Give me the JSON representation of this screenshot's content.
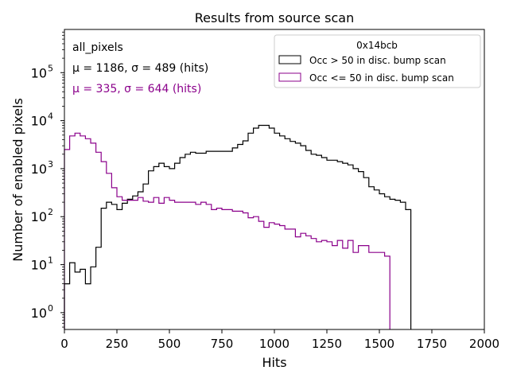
{
  "chart_data": {
    "type": "histogram",
    "title": "Results from source scan",
    "xlabel": "Hits",
    "ylabel": "Number of enabled pixels",
    "xlim": [
      0,
      2000
    ],
    "ylim_log10": [
      -0.35,
      5.9
    ],
    "yscale": "log",
    "bin_width": 25,
    "x_ticks": [
      0,
      250,
      500,
      750,
      1000,
      1250,
      1500,
      1750,
      2000
    ],
    "x_tick_labels": [
      "0",
      "250",
      "500",
      "750",
      "1000",
      "1250",
      "1500",
      "1750",
      "2000"
    ],
    "y_ticks": [
      {
        "exp": 0,
        "label": "10",
        "sup": "0"
      },
      {
        "exp": 1,
        "label": "10",
        "sup": "1"
      },
      {
        "exp": 2,
        "label": "10",
        "sup": "2"
      },
      {
        "exp": 3,
        "label": "10",
        "sup": "3"
      },
      {
        "exp": 4,
        "label": "10",
        "sup": "4"
      },
      {
        "exp": 5,
        "label": "10",
        "sup": "5"
      }
    ],
    "annotations": {
      "dataset": "all_pixels",
      "stats_black": "μ = 1186, σ = 489 (hits)",
      "stats_purple": "μ = 335, σ = 644 (hits)"
    },
    "legend": {
      "title": "0x14bcb",
      "placement": "top-right",
      "entries": [
        "Occ > 50 in disc. bump scan",
        "Occ <= 50 in disc. bump scan"
      ]
    },
    "series": [
      {
        "name": "Occ > 50 in disc. bump scan",
        "color": "#000000",
        "values": [
          4,
          11,
          7,
          8,
          4,
          9,
          23,
          150,
          200,
          180,
          140,
          190,
          230,
          270,
          330,
          480,
          900,
          1100,
          1300,
          1100,
          1000,
          1300,
          1700,
          2000,
          2200,
          2100,
          2100,
          2300,
          2300,
          2300,
          2300,
          2300,
          2700,
          3200,
          3800,
          5500,
          7000,
          8000,
          8000,
          7000,
          5500,
          4800,
          4200,
          3700,
          3400,
          3000,
          2400,
          2000,
          1900,
          1700,
          1500,
          1500,
          1400,
          1300,
          1200,
          1000,
          870,
          650,
          420,
          360,
          300,
          260,
          230,
          220,
          200,
          140
        ]
      },
      {
        "name": "Occ <= 50 in disc. bump scan",
        "color": "#8b008b",
        "values": [
          2500,
          4800,
          5500,
          4800,
          4200,
          3400,
          2200,
          1400,
          800,
          400,
          260,
          220,
          220,
          220,
          250,
          210,
          200,
          250,
          190,
          250,
          220,
          200,
          200,
          200,
          200,
          180,
          200,
          180,
          140,
          150,
          140,
          140,
          130,
          130,
          120,
          95,
          100,
          80,
          60,
          75,
          70,
          65,
          55,
          55,
          38,
          45,
          40,
          35,
          30,
          32,
          30,
          25,
          32,
          22,
          32,
          18,
          25,
          25,
          18,
          18,
          18,
          15
        ]
      }
    ]
  }
}
